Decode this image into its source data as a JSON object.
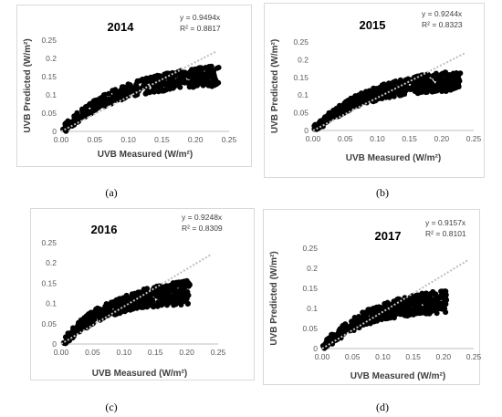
{
  "chart_data": [
    {
      "type": "scatter",
      "title": "2014",
      "xlabel": "UVB Measured (W/m²)",
      "ylabel": "UVB Predicted (W/m²)",
      "xlim": [
        0,
        0.25
      ],
      "ylim": [
        0,
        0.25
      ],
      "xticks": [
        "0.00",
        "0.05",
        "0.10",
        "0.15",
        "0.20",
        "0.25"
      ],
      "yticks": [
        "0",
        "0.05",
        "0.1",
        "0.15",
        "0.2",
        "0.25"
      ],
      "trendline": {
        "slope": 0.9494,
        "style": "dotted"
      },
      "equation": "y = 0.9494x",
      "r2_label": "R² = 0.8817",
      "x_max": 0.235,
      "y_max": 0.155,
      "panel_label": "(a)"
    },
    {
      "type": "scatter",
      "title": "2015",
      "xlabel": "UVB Measured (W/m²)",
      "ylabel": "UVB Predicted (W/m²)",
      "xlim": [
        0,
        0.25
      ],
      "ylim": [
        0,
        0.25
      ],
      "xticks": [
        "0.00",
        "0.05",
        "0.10",
        "0.15",
        "0.20",
        "0.25"
      ],
      "yticks": [
        "0",
        "0.05",
        "0.1",
        "0.15",
        "0.2",
        "0.25"
      ],
      "trendline": {
        "slope": 0.9244,
        "style": "dotted"
      },
      "equation": "y = 0.9244x",
      "r2_label": "R² = 0.8323",
      "x_max": 0.23,
      "y_max": 0.145,
      "panel_label": "(b)"
    },
    {
      "type": "scatter",
      "title": "2016",
      "xlabel": "UVB Measured (W/m²)",
      "ylabel": "UVB Predicted (W/m²)",
      "xlim": [
        0,
        0.25
      ],
      "ylim": [
        0,
        0.25
      ],
      "xticks": [
        "0.00",
        "0.05",
        "0.10",
        "0.15",
        "0.20",
        "0.25"
      ],
      "yticks": [
        "0",
        "0.05",
        "0.1",
        "0.15",
        "0.2",
        "0.25"
      ],
      "trendline": {
        "slope": 0.9248,
        "style": "dotted"
      },
      "equation": "y = 0.9248x",
      "r2_label": "R² = 0.8309",
      "x_max": 0.205,
      "y_max": 0.13,
      "panel_label": "(c)"
    },
    {
      "type": "scatter",
      "title": "2017",
      "xlabel": "UVB Measured (W/m²)",
      "ylabel": "UVB Predicted (W/m²)",
      "xlim": [
        0,
        0.25
      ],
      "ylim": [
        0,
        0.25
      ],
      "xticks": [
        "0.00",
        "0.05",
        "0.10",
        "0.15",
        "0.20",
        "0.25"
      ],
      "yticks": [
        "0",
        "0.05",
        "0.1",
        "0.15",
        "0.2",
        "0.25"
      ],
      "trendline": {
        "slope": 0.9157,
        "style": "dotted"
      },
      "equation": "y = 0.9157x",
      "r2_label": "R² = 0.8101",
      "x_max": 0.205,
      "y_max": 0.12,
      "panel_label": "(d)"
    }
  ]
}
